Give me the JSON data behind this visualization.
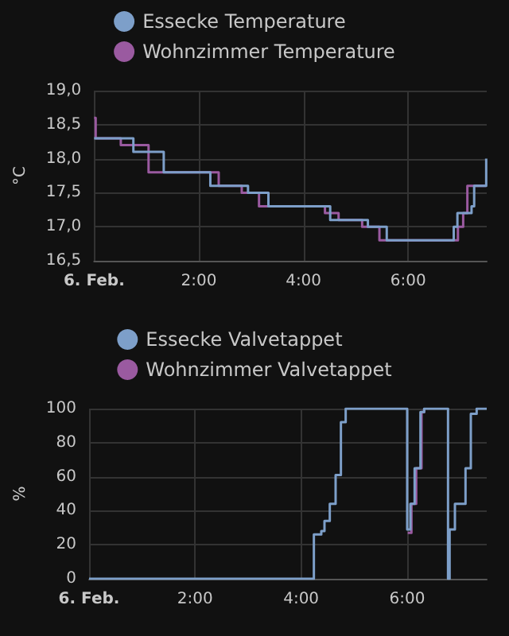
{
  "chart_data": [
    {
      "type": "step",
      "ylabel": "°C",
      "legend": "top",
      "grid": true,
      "marker": "none",
      "line_style": "solid",
      "xlim": [
        0,
        7.5
      ],
      "xticks": [
        {
          "value": 0,
          "label": "6. Feb."
        },
        {
          "value": 2,
          "label": "2:00"
        },
        {
          "value": 4,
          "label": "4:00"
        },
        {
          "value": 6,
          "label": "6:00"
        }
      ],
      "ylim": [
        16.5,
        19
      ],
      "yticks": [
        {
          "value": 16.5,
          "label": "16,5"
        },
        {
          "value": 17,
          "label": "17,0"
        },
        {
          "value": 17.5,
          "label": "17,5"
        },
        {
          "value": 18,
          "label": "18,0"
        },
        {
          "value": 18.5,
          "label": "18,5"
        },
        {
          "value": 19,
          "label": "19,0"
        }
      ],
      "series": [
        {
          "name": "Essecke Temperature",
          "color": "#7d9fc9",
          "x": [
            0,
            0.75,
            1.33,
            2.22,
            2.94,
            3.33,
            4.51,
            5.23,
            5.59,
            6.87,
            6.94,
            7.21,
            7.26,
            7.49
          ],
          "values": [
            18.3,
            18.1,
            17.8,
            17.6,
            17.5,
            17.3,
            17.1,
            17.0,
            16.8,
            17.0,
            17.2,
            17.3,
            17.6,
            18.0
          ]
        },
        {
          "name": "Wohnzimmer Temperature",
          "color": "#9a5aa0",
          "x": [
            0,
            0.03,
            0.51,
            1.04,
            2.38,
            2.82,
            3.15,
            4.41,
            4.67,
            5.12,
            5.45,
            6.95,
            7.05,
            7.13,
            7.49
          ],
          "values": [
            18.6,
            18.3,
            18.2,
            17.8,
            17.6,
            17.5,
            17.3,
            17.2,
            17.1,
            17.0,
            16.8,
            17.0,
            17.2,
            17.6,
            17.6
          ]
        }
      ]
    },
    {
      "type": "step",
      "ylabel": "%",
      "legend": "top",
      "grid": true,
      "marker": "none",
      "line_style": "solid",
      "xlim": [
        0,
        7.5
      ],
      "xticks": [
        {
          "value": 0,
          "label": "6. Feb."
        },
        {
          "value": 2,
          "label": "2:00"
        },
        {
          "value": 4,
          "label": "4:00"
        },
        {
          "value": 6,
          "label": "6:00"
        }
      ],
      "ylim": [
        0,
        100
      ],
      "yticks": [
        0,
        20,
        40,
        60,
        80,
        100
      ],
      "series": [
        {
          "name": "Essecke Valvetappet",
          "color": "#7d9fc9",
          "x": [
            0,
            4.24,
            4.38,
            4.44,
            4.54,
            4.65,
            4.75,
            4.84,
            6.0,
            6.06,
            6.14,
            6.25,
            6.32,
            6.77,
            6.8,
            6.9,
            7.1,
            7.2,
            7.31,
            7.5
          ],
          "values": [
            0,
            26,
            28,
            34,
            44,
            61,
            92,
            100,
            29,
            44,
            65,
            98,
            100,
            0,
            29,
            44,
            65,
            97,
            100,
            100
          ]
        },
        {
          "name": "Wohnzimmer Valvetappet",
          "color": "#9a5aa0",
          "x": [
            6.01,
            6.08,
            6.17,
            6.27,
            6.32
          ],
          "values": [
            27,
            44,
            65,
            98,
            100
          ]
        }
      ]
    }
  ]
}
